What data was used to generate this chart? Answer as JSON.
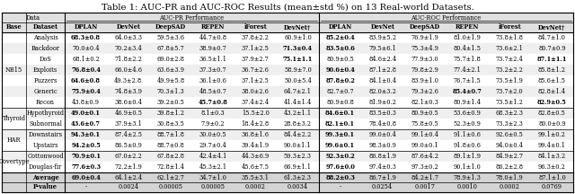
{
  "title": "Table 1: AUC-PR and AUC-ROC Results (mean±std %) on 13 Real-world Datasets.",
  "col_headers": [
    "DPLAN",
    "DevNet",
    "DeepSAD",
    "REPEN",
    "iForest",
    "DevNet†"
  ],
  "groups": [
    {
      "name": "NB15",
      "datasets": [
        "Analysis",
        "Backdoor",
        "DoS",
        "Exploits",
        "Fuzzers",
        "Generic",
        "Recon"
      ]
    },
    {
      "name": "Thyroid",
      "datasets": [
        "Hypothyroid",
        "Subnormal"
      ]
    },
    {
      "name": "HAR",
      "datasets": [
        "Downstairs",
        "Upstairs"
      ]
    },
    {
      "name": "Covertype",
      "datasets": [
        "Cottonwood",
        "Douglas-fir"
      ]
    }
  ],
  "pr_data": [
    [
      "68.3±0.8",
      "64.0±3.3",
      "59.5±3.6",
      "44.7±0.8",
      "37.8±2.2",
      "60.9±1.0"
    ],
    [
      "70.0±0.4",
      "70.2±3.4",
      "67.8±5.7",
      "38.9±0.7",
      "37.1±2.5",
      "71.3±0.4"
    ],
    [
      "68.1±0.2",
      "71.8±2.2",
      "69.0±2.8",
      "36.5±1.1",
      "37.9±2.7",
      "75.1±1.1"
    ],
    [
      "76.8±0.4",
      "66.0±4.6",
      "63.6±3.9",
      "37.3±0.7",
      "36.7±2.6",
      "58.9±7.0"
    ],
    [
      "64.6±0.8",
      "49.3±2.8",
      "49.9±5.8",
      "36.1±0.6",
      "37.1±2.5",
      "50.0±5.4"
    ],
    [
      "75.9±0.4",
      "74.8±3.9",
      "70.3±1.3",
      "48.5±0.7",
      "38.0±2.6",
      "64.7±2.1"
    ],
    [
      "43.8±0.9",
      "38.6±0.4",
      "39.2±0.5",
      "45.7±0.8",
      "37.4±2.4",
      "41.4±1.4"
    ],
    [
      "49.0±0.1",
      "46.9±0.5",
      "39.8±1.2",
      "8.1±0.3",
      "15.5±2.0",
      "43.2±1.1"
    ],
    [
      "43.6±0.7",
      "37.9±3.1",
      "30.8±3.5",
      "7.9±0.2",
      "18.4±2.8",
      "28.8±3.2"
    ],
    [
      "94.3±0.1",
      "87.4±2.5",
      "88.7±1.8",
      "30.0±0.5",
      "36.8±1.6",
      "84.4±2.2"
    ],
    [
      "94.2±0.5",
      "86.5±0.9",
      "88.7±0.8",
      "29.7±0.4",
      "39.4±1.9",
      "90.0±1.1"
    ],
    [
      "70.9±0.1",
      "67.0±2.2",
      "67.8±2.8",
      "42.4±4.1",
      "44.3±6.9",
      "59.3±2.3"
    ],
    [
      "77.6±0.3",
      "72.2±1.9",
      "72.8±1.4",
      "45.3±2.1",
      "45.6±7.5",
      "66.9±1.1"
    ]
  ],
  "roc_data": [
    [
      "85.2±0.4",
      "83.9±5.2",
      "76.9±1.9",
      "81.0±1.9",
      "73.8±1.8",
      "84.7±1.0"
    ],
    [
      "83.5±0.6",
      "79.5±6.1",
      "75.3±4.9",
      "80.4±1.5",
      "73.6±2.1",
      "80.7±0.9"
    ],
    [
      "80.9±0.5",
      "84.6±2.4",
      "77.9±3.0",
      "75.7±1.8",
      "73.7±2.4",
      "87.1±1.1"
    ],
    [
      "90.6±0.4",
      "87.1±2.8",
      "79.8±2.9",
      "77.4±2.1",
      "73.2±2.2",
      "85.8±1.2"
    ],
    [
      "87.8±0.2",
      "84.1±0.4",
      "83.9±1.0",
      "76.7±1.5",
      "73.5±1.9",
      "85.6±1.5"
    ],
    [
      "82.7±0.7",
      "82.0±3.2",
      "79.3±2.6",
      "85.4±0.7",
      "73.7±2.0",
      "82.8±1.4"
    ],
    [
      "80.9±0.8",
      "81.9±0.2",
      "82.1±0.3",
      "80.9±1.4",
      "73.5±1.2",
      "82.9±0.5"
    ],
    [
      "84.6±0.1",
      "83.5±0.3",
      "80.9±0.5",
      "53.6±0.9",
      "68.3±2.3",
      "82.8±0.5"
    ],
    [
      "82.1±0.1",
      "78.4±0.8",
      "75.8±0.5",
      "52.3±0.9",
      "73.3±2.3",
      "80.0±0.9"
    ],
    [
      "99.3±0.1",
      "99.0±0.4",
      "99.1±0.4",
      "91.1±0.6",
      "92.6±0.5",
      "99.1±0.2"
    ],
    [
      "99.6±0.1",
      "98.3±0.9",
      "99.0±0.1",
      "91.8±0.6",
      "94.0±0.4",
      "99.4±0.1"
    ],
    [
      "92.3±0.2",
      "86.8±1.9",
      "87.6±4.2",
      "89.1±1.9",
      "84.9±2.7",
      "84.1±3.2"
    ],
    [
      "97.6±0.0",
      "97.4±0.3",
      "97.3±0.2",
      "90.1±1.0",
      "86.2±2.8",
      "96.3±0.2"
    ]
  ],
  "pr_bold": [
    [
      true,
      false,
      false,
      false,
      false,
      false
    ],
    [
      false,
      false,
      false,
      false,
      false,
      true
    ],
    [
      false,
      false,
      false,
      false,
      false,
      true
    ],
    [
      true,
      false,
      false,
      false,
      false,
      false
    ],
    [
      true,
      false,
      false,
      false,
      false,
      false
    ],
    [
      true,
      false,
      false,
      false,
      false,
      false
    ],
    [
      false,
      false,
      false,
      true,
      false,
      false
    ],
    [
      true,
      false,
      false,
      false,
      false,
      false
    ],
    [
      true,
      false,
      false,
      false,
      false,
      false
    ],
    [
      true,
      false,
      false,
      false,
      false,
      false
    ],
    [
      true,
      false,
      false,
      false,
      false,
      false
    ],
    [
      true,
      false,
      false,
      false,
      false,
      false
    ],
    [
      true,
      false,
      false,
      false,
      false,
      false
    ]
  ],
  "roc_bold": [
    [
      true,
      false,
      false,
      false,
      false,
      false
    ],
    [
      true,
      false,
      false,
      false,
      false,
      false
    ],
    [
      false,
      false,
      false,
      false,
      false,
      true
    ],
    [
      true,
      false,
      false,
      false,
      false,
      false
    ],
    [
      true,
      false,
      false,
      false,
      false,
      false
    ],
    [
      false,
      false,
      false,
      true,
      false,
      false
    ],
    [
      false,
      false,
      false,
      false,
      false,
      true
    ],
    [
      true,
      false,
      false,
      false,
      false,
      false
    ],
    [
      true,
      false,
      false,
      false,
      false,
      false
    ],
    [
      true,
      false,
      false,
      false,
      false,
      false
    ],
    [
      true,
      false,
      false,
      false,
      false,
      false
    ],
    [
      true,
      false,
      false,
      false,
      false,
      false
    ],
    [
      true,
      false,
      false,
      false,
      false,
      false
    ]
  ],
  "average_row": {
    "pr": [
      "69.0±0.4",
      "64.1±2.4",
      "62.1±2.7",
      "34.7±1.0",
      "35.5±3.1",
      "61.3±2.3"
    ],
    "roc": [
      "88.2±0.3",
      "86.7±1.9",
      "84.2±1.7",
      "78.9±1.3",
      "78.0±1.9",
      "87.1±1.0"
    ],
    "pr_bold": [
      true,
      false,
      false,
      false,
      false,
      false
    ],
    "roc_bold": [
      true,
      false,
      false,
      false,
      false,
      false
    ]
  },
  "pvalue_row": {
    "pr": [
      "-",
      "0.0024",
      "0.00005",
      "0.00005",
      "0.0002",
      "0.0034"
    ],
    "roc": [
      "-",
      "0.0254",
      "0.0017",
      "0.0010",
      "0.0002",
      "0.0769"
    ]
  },
  "font_size": 4.8,
  "title_font_size": 7.2
}
